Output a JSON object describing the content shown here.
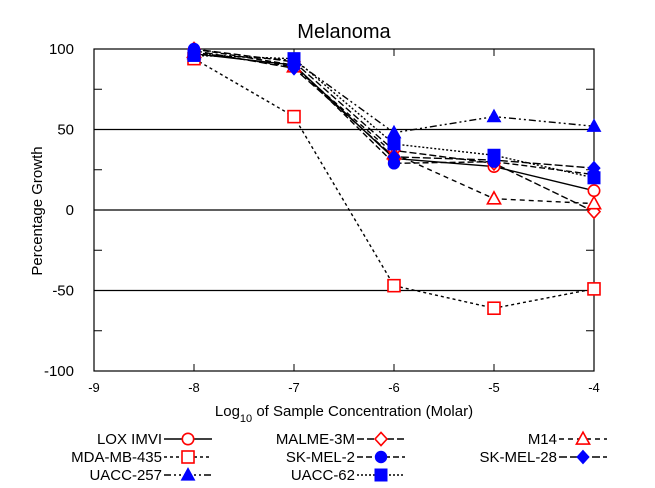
{
  "chart_data": {
    "type": "line",
    "title": "Melanoma",
    "xlabel_prefix": "Log",
    "xlabel_sub": "10",
    "xlabel_suffix": " of Sample Concentration (Molar)",
    "ylabel": "Percentage Growth",
    "xlim": [
      -9,
      -4
    ],
    "ylim": [
      -100,
      100
    ],
    "x_ticks": [
      "-9",
      "-8",
      "-7",
      "-6",
      "-5",
      "-4"
    ],
    "y_ticks": [
      "-100",
      "-50",
      "0",
      "50",
      "100"
    ],
    "reference_lines": [
      50,
      0,
      -50
    ],
    "x": [
      -8,
      -7,
      -6,
      -5,
      -4
    ],
    "series": [
      {
        "name": "LOX IMVI",
        "values": [
          97,
          90,
          32,
          27,
          12
        ],
        "color": "#000000",
        "marker_color": "#ff0000",
        "marker": "circle-open",
        "dash": ""
      },
      {
        "name": "MALME-3M",
        "values": [
          100,
          92,
          37,
          29,
          -1
        ],
        "color": "#000000",
        "marker_color": "#ff0000",
        "marker": "diamond-open",
        "dash": "7,3"
      },
      {
        "name": "M14",
        "values": [
          98,
          89,
          35,
          7,
          4
        ],
        "color": "#000000",
        "marker_color": "#ff0000",
        "marker": "triangle-open",
        "dash": "5,4"
      },
      {
        "name": "MDA-MB-435",
        "values": [
          94,
          58,
          -47,
          -61,
          -49
        ],
        "color": "#000000",
        "marker_color": "#ff0000",
        "marker": "square-open",
        "dash": "3,3"
      },
      {
        "name": "SK-MEL-2",
        "values": [
          100,
          90,
          29,
          30,
          22
        ],
        "color": "#000000",
        "marker_color": "#0000ff",
        "marker": "circle",
        "dash": "6,3"
      },
      {
        "name": "SK-MEL-28",
        "values": [
          99,
          88,
          33,
          31,
          26
        ],
        "color": "#000000",
        "marker_color": "#0000ff",
        "marker": "diamond",
        "dash": "8,3"
      },
      {
        "name": "UACC-257",
        "values": [
          97,
          93,
          48,
          58,
          52
        ],
        "color": "#000000",
        "marker_color": "#0000ff",
        "marker": "triangle",
        "dash": "7,3,2,3,2,3"
      },
      {
        "name": "UACC-62",
        "values": [
          96,
          94,
          41,
          34,
          20
        ],
        "color": "#000000",
        "marker_color": "#0000ff",
        "marker": "square",
        "dash": "2,2"
      }
    ]
  }
}
